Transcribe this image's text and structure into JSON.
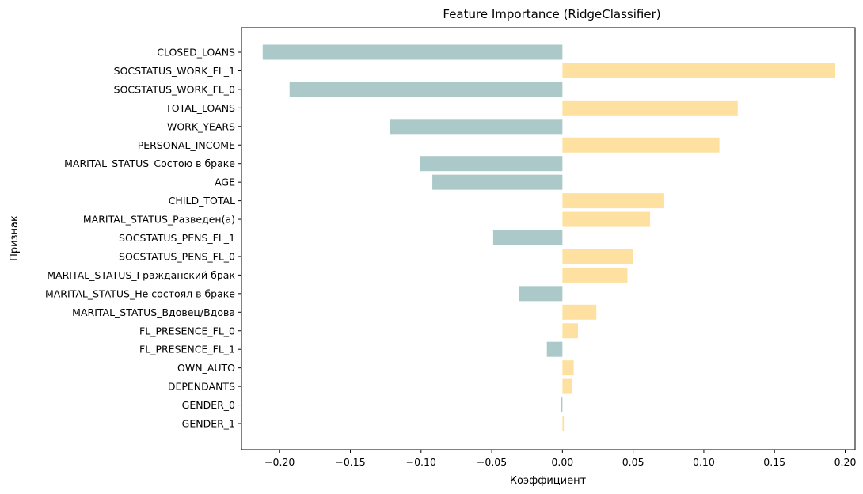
{
  "chart_data": {
    "type": "bar",
    "orientation": "horizontal",
    "title": "Feature Importance (RidgeClassifier)",
    "xlabel": "Коэффициент",
    "ylabel": "Признак",
    "xlim": [
      -0.227,
      0.207
    ],
    "xticks": [
      -0.2,
      -0.15,
      -0.1,
      -0.05,
      0.0,
      0.05,
      0.1,
      0.15,
      0.2
    ],
    "xtick_labels": [
      "−0.20",
      "−0.15",
      "−0.10",
      "−0.05",
      "0.00",
      "0.05",
      "0.10",
      "0.15",
      "0.20"
    ],
    "grid": false,
    "colors": {
      "negative": "#acc9ca",
      "positive": "#fee1a0"
    },
    "categories": [
      "CLOSED_LOANS",
      "SOCSTATUS_WORK_FL_1",
      "SOCSTATUS_WORK_FL_0",
      "TOTAL_LOANS",
      "WORK_YEARS",
      "PERSONAL_INCOME",
      "MARITAL_STATUS_Состою в браке",
      "AGE",
      "CHILD_TOTAL",
      "MARITAL_STATUS_Разведен(а)",
      "SOCSTATUS_PENS_FL_1",
      "SOCSTATUS_PENS_FL_0",
      "MARITAL_STATUS_Гражданский брак",
      "MARITAL_STATUS_Не состоял в браке",
      "MARITAL_STATUS_Вдовец/Вдова",
      "FL_PRESENCE_FL_0",
      "FL_PRESENCE_FL_1",
      "OWN_AUTO",
      "DEPENDANTS",
      "GENDER_0",
      "GENDER_1"
    ],
    "values": [
      -0.212,
      0.193,
      -0.193,
      0.124,
      -0.122,
      0.111,
      -0.101,
      -0.092,
      0.072,
      0.062,
      -0.049,
      0.05,
      0.046,
      -0.031,
      0.024,
      0.011,
      -0.011,
      0.008,
      0.007,
      -0.001,
      0.001
    ]
  }
}
